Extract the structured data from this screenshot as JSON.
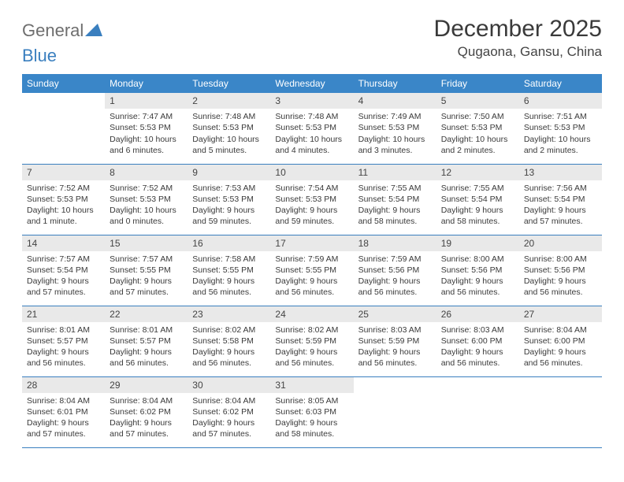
{
  "logo": {
    "text1": "General",
    "text2": "Blue"
  },
  "title": "December 2025",
  "location": "Qugaona, Gansu, China",
  "colors": {
    "header_bg": "#3a86c8",
    "header_text": "#ffffff",
    "daynum_bg": "#e9e9e9",
    "rule": "#3a7fbf",
    "logo_gray": "#6e6e6e",
    "logo_blue": "#3a7fbf"
  },
  "weekdays": [
    "Sunday",
    "Monday",
    "Tuesday",
    "Wednesday",
    "Thursday",
    "Friday",
    "Saturday"
  ],
  "weeks": [
    [
      {
        "n": "",
        "sunrise": "",
        "sunset": "",
        "daylight": ""
      },
      {
        "n": "1",
        "sunrise": "Sunrise: 7:47 AM",
        "sunset": "Sunset: 5:53 PM",
        "daylight": "Daylight: 10 hours and 6 minutes."
      },
      {
        "n": "2",
        "sunrise": "Sunrise: 7:48 AM",
        "sunset": "Sunset: 5:53 PM",
        "daylight": "Daylight: 10 hours and 5 minutes."
      },
      {
        "n": "3",
        "sunrise": "Sunrise: 7:48 AM",
        "sunset": "Sunset: 5:53 PM",
        "daylight": "Daylight: 10 hours and 4 minutes."
      },
      {
        "n": "4",
        "sunrise": "Sunrise: 7:49 AM",
        "sunset": "Sunset: 5:53 PM",
        "daylight": "Daylight: 10 hours and 3 minutes."
      },
      {
        "n": "5",
        "sunrise": "Sunrise: 7:50 AM",
        "sunset": "Sunset: 5:53 PM",
        "daylight": "Daylight: 10 hours and 2 minutes."
      },
      {
        "n": "6",
        "sunrise": "Sunrise: 7:51 AM",
        "sunset": "Sunset: 5:53 PM",
        "daylight": "Daylight: 10 hours and 2 minutes."
      }
    ],
    [
      {
        "n": "7",
        "sunrise": "Sunrise: 7:52 AM",
        "sunset": "Sunset: 5:53 PM",
        "daylight": "Daylight: 10 hours and 1 minute."
      },
      {
        "n": "8",
        "sunrise": "Sunrise: 7:52 AM",
        "sunset": "Sunset: 5:53 PM",
        "daylight": "Daylight: 10 hours and 0 minutes."
      },
      {
        "n": "9",
        "sunrise": "Sunrise: 7:53 AM",
        "sunset": "Sunset: 5:53 PM",
        "daylight": "Daylight: 9 hours and 59 minutes."
      },
      {
        "n": "10",
        "sunrise": "Sunrise: 7:54 AM",
        "sunset": "Sunset: 5:53 PM",
        "daylight": "Daylight: 9 hours and 59 minutes."
      },
      {
        "n": "11",
        "sunrise": "Sunrise: 7:55 AM",
        "sunset": "Sunset: 5:54 PM",
        "daylight": "Daylight: 9 hours and 58 minutes."
      },
      {
        "n": "12",
        "sunrise": "Sunrise: 7:55 AM",
        "sunset": "Sunset: 5:54 PM",
        "daylight": "Daylight: 9 hours and 58 minutes."
      },
      {
        "n": "13",
        "sunrise": "Sunrise: 7:56 AM",
        "sunset": "Sunset: 5:54 PM",
        "daylight": "Daylight: 9 hours and 57 minutes."
      }
    ],
    [
      {
        "n": "14",
        "sunrise": "Sunrise: 7:57 AM",
        "sunset": "Sunset: 5:54 PM",
        "daylight": "Daylight: 9 hours and 57 minutes."
      },
      {
        "n": "15",
        "sunrise": "Sunrise: 7:57 AM",
        "sunset": "Sunset: 5:55 PM",
        "daylight": "Daylight: 9 hours and 57 minutes."
      },
      {
        "n": "16",
        "sunrise": "Sunrise: 7:58 AM",
        "sunset": "Sunset: 5:55 PM",
        "daylight": "Daylight: 9 hours and 56 minutes."
      },
      {
        "n": "17",
        "sunrise": "Sunrise: 7:59 AM",
        "sunset": "Sunset: 5:55 PM",
        "daylight": "Daylight: 9 hours and 56 minutes."
      },
      {
        "n": "18",
        "sunrise": "Sunrise: 7:59 AM",
        "sunset": "Sunset: 5:56 PM",
        "daylight": "Daylight: 9 hours and 56 minutes."
      },
      {
        "n": "19",
        "sunrise": "Sunrise: 8:00 AM",
        "sunset": "Sunset: 5:56 PM",
        "daylight": "Daylight: 9 hours and 56 minutes."
      },
      {
        "n": "20",
        "sunrise": "Sunrise: 8:00 AM",
        "sunset": "Sunset: 5:56 PM",
        "daylight": "Daylight: 9 hours and 56 minutes."
      }
    ],
    [
      {
        "n": "21",
        "sunrise": "Sunrise: 8:01 AM",
        "sunset": "Sunset: 5:57 PM",
        "daylight": "Daylight: 9 hours and 56 minutes."
      },
      {
        "n": "22",
        "sunrise": "Sunrise: 8:01 AM",
        "sunset": "Sunset: 5:57 PM",
        "daylight": "Daylight: 9 hours and 56 minutes."
      },
      {
        "n": "23",
        "sunrise": "Sunrise: 8:02 AM",
        "sunset": "Sunset: 5:58 PM",
        "daylight": "Daylight: 9 hours and 56 minutes."
      },
      {
        "n": "24",
        "sunrise": "Sunrise: 8:02 AM",
        "sunset": "Sunset: 5:59 PM",
        "daylight": "Daylight: 9 hours and 56 minutes."
      },
      {
        "n": "25",
        "sunrise": "Sunrise: 8:03 AM",
        "sunset": "Sunset: 5:59 PM",
        "daylight": "Daylight: 9 hours and 56 minutes."
      },
      {
        "n": "26",
        "sunrise": "Sunrise: 8:03 AM",
        "sunset": "Sunset: 6:00 PM",
        "daylight": "Daylight: 9 hours and 56 minutes."
      },
      {
        "n": "27",
        "sunrise": "Sunrise: 8:04 AM",
        "sunset": "Sunset: 6:00 PM",
        "daylight": "Daylight: 9 hours and 56 minutes."
      }
    ],
    [
      {
        "n": "28",
        "sunrise": "Sunrise: 8:04 AM",
        "sunset": "Sunset: 6:01 PM",
        "daylight": "Daylight: 9 hours and 57 minutes."
      },
      {
        "n": "29",
        "sunrise": "Sunrise: 8:04 AM",
        "sunset": "Sunset: 6:02 PM",
        "daylight": "Daylight: 9 hours and 57 minutes."
      },
      {
        "n": "30",
        "sunrise": "Sunrise: 8:04 AM",
        "sunset": "Sunset: 6:02 PM",
        "daylight": "Daylight: 9 hours and 57 minutes."
      },
      {
        "n": "31",
        "sunrise": "Sunrise: 8:05 AM",
        "sunset": "Sunset: 6:03 PM",
        "daylight": "Daylight: 9 hours and 58 minutes."
      },
      {
        "n": "",
        "sunrise": "",
        "sunset": "",
        "daylight": ""
      },
      {
        "n": "",
        "sunrise": "",
        "sunset": "",
        "daylight": ""
      },
      {
        "n": "",
        "sunrise": "",
        "sunset": "",
        "daylight": ""
      }
    ]
  ]
}
